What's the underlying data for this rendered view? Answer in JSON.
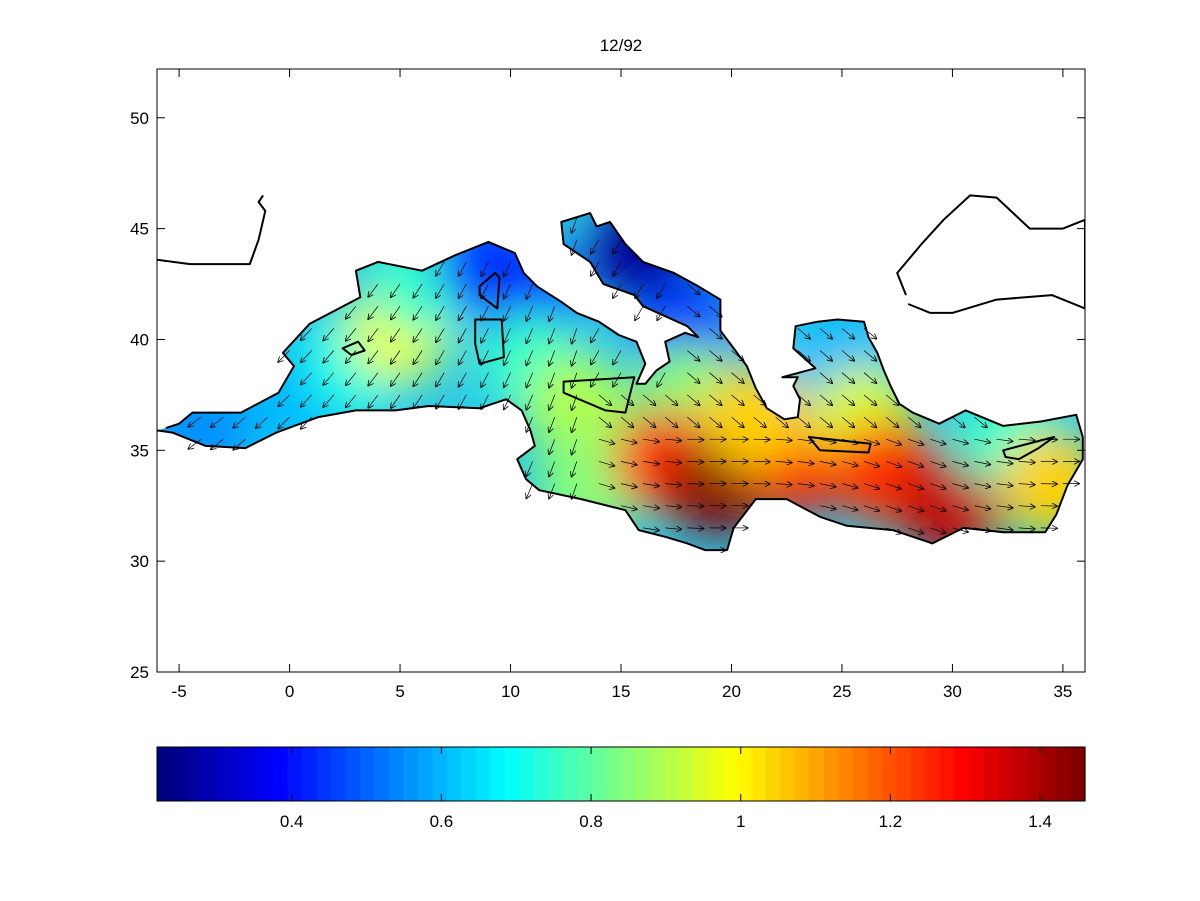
{
  "title": "12/92",
  "map": {
    "x_ticks": [
      "-5",
      "0",
      "5",
      "10",
      "15",
      "20",
      "25",
      "30",
      "35"
    ],
    "x_tick_values": [
      -5,
      0,
      5,
      10,
      15,
      20,
      25,
      30,
      35
    ],
    "y_ticks": [
      "50",
      "45",
      "40",
      "35",
      "30",
      "25"
    ],
    "y_tick_values": [
      50,
      45,
      40,
      35,
      30,
      25
    ],
    "xlim": [
      -6,
      36
    ],
    "ylim": [
      25,
      52.2
    ],
    "field_colormap": "jet",
    "arrow_color": "#000000",
    "coastline_color": "#000000"
  },
  "colorbar": {
    "colormap": "jet",
    "range": [
      0.22,
      1.46
    ],
    "tick_labels": [
      "0.4",
      "0.6",
      "0.8",
      "1",
      "1.2",
      "1.4"
    ],
    "tick_values": [
      0.4,
      0.6,
      0.8,
      1.0,
      1.2,
      1.4
    ],
    "steps": 64
  },
  "chart_data": {
    "type": "heatmap",
    "title": "12/92",
    "xlabel": "",
    "ylabel": "",
    "xlim": [
      -6,
      36
    ],
    "ylim": [
      25,
      52.2
    ],
    "colorbar_range": [
      0.22,
      1.46
    ],
    "overlay": "vector arrows (field direction)",
    "regions": [
      {
        "lon": -4,
        "lat": 36,
        "value": 0.55
      },
      {
        "lon": 0,
        "lat": 37.5,
        "value": 0.6
      },
      {
        "lon": 3,
        "lat": 39,
        "value": 0.72
      },
      {
        "lon": 5,
        "lat": 40.5,
        "value": 0.98
      },
      {
        "lon": 6,
        "lat": 42.5,
        "value": 0.75
      },
      {
        "lon": 9,
        "lat": 43.5,
        "value": 0.45
      },
      {
        "lon": 11,
        "lat": 41.5,
        "value": 0.4
      },
      {
        "lon": 11,
        "lat": 39,
        "value": 0.75
      },
      {
        "lon": 13,
        "lat": 37,
        "value": 0.9
      },
      {
        "lon": 13.5,
        "lat": 33.5,
        "value": 0.85
      },
      {
        "lon": 16,
        "lat": 44,
        "value": 0.25
      },
      {
        "lon": 18,
        "lat": 40.5,
        "value": 0.45
      },
      {
        "lon": 18,
        "lat": 37.5,
        "value": 0.85
      },
      {
        "lon": 17,
        "lat": 34.5,
        "value": 1.25
      },
      {
        "lon": 19.5,
        "lat": 33.5,
        "value": 1.45
      },
      {
        "lon": 23,
        "lat": 34.5,
        "value": 1.3
      },
      {
        "lon": 21,
        "lat": 36.5,
        "value": 1.05
      },
      {
        "lon": 25,
        "lat": 39,
        "value": 0.6
      },
      {
        "lon": 26,
        "lat": 36.5,
        "value": 0.95
      },
      {
        "lon": 27,
        "lat": 34,
        "value": 1.25
      },
      {
        "lon": 30,
        "lat": 32.5,
        "value": 1.38
      },
      {
        "lon": 32.5,
        "lat": 35.5,
        "value": 0.75
      },
      {
        "lon": 34.5,
        "lat": 33.5,
        "value": 1.05
      }
    ]
  }
}
